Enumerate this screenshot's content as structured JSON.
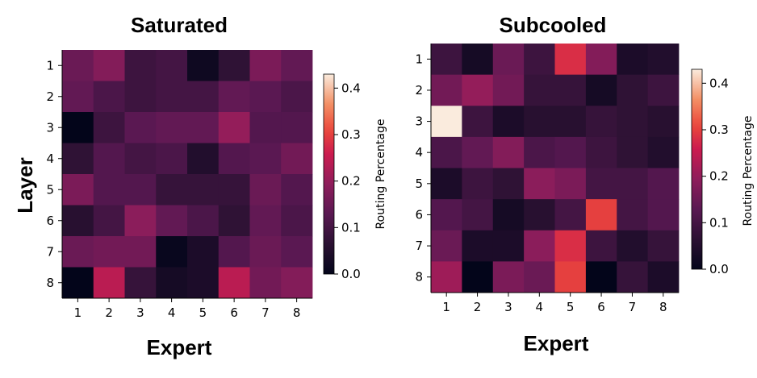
{
  "chart_data": [
    {
      "type": "heatmap",
      "title": "Saturated",
      "xlabel": "Expert",
      "ylabel": "Layer",
      "x_ticks": [
        "1",
        "2",
        "3",
        "4",
        "5",
        "6",
        "7",
        "8"
      ],
      "y_ticks": [
        "1",
        "2",
        "3",
        "4",
        "5",
        "6",
        "7",
        "8"
      ],
      "values": [
        [
          0.15,
          0.18,
          0.09,
          0.1,
          0.02,
          0.07,
          0.17,
          0.14
        ],
        [
          0.14,
          0.11,
          0.09,
          0.1,
          0.1,
          0.14,
          0.13,
          0.11
        ],
        [
          0.0,
          0.09,
          0.13,
          0.14,
          0.14,
          0.2,
          0.12,
          0.12
        ],
        [
          0.07,
          0.12,
          0.1,
          0.11,
          0.05,
          0.12,
          0.13,
          0.16
        ],
        [
          0.17,
          0.12,
          0.12,
          0.08,
          0.08,
          0.08,
          0.15,
          0.12
        ],
        [
          0.06,
          0.1,
          0.19,
          0.14,
          0.11,
          0.07,
          0.14,
          0.11
        ],
        [
          0.15,
          0.16,
          0.16,
          0.01,
          0.04,
          0.12,
          0.15,
          0.13
        ],
        [
          0.0,
          0.24,
          0.08,
          0.03,
          0.04,
          0.24,
          0.16,
          0.18
        ]
      ],
      "colorbar": {
        "label": "Routing Percentage",
        "ticks": [
          "0.0",
          "0.1",
          "0.2",
          "0.3",
          "0.4"
        ],
        "range": [
          0,
          0.43
        ]
      }
    },
    {
      "type": "heatmap",
      "title": "Subcooled",
      "xlabel": "Expert",
      "ylabel": "",
      "x_ticks": [
        "1",
        "2",
        "3",
        "4",
        "5",
        "6",
        "7",
        "8"
      ],
      "y_ticks": [
        "1",
        "2",
        "3",
        "4",
        "5",
        "6",
        "7",
        "8"
      ],
      "values": [
        [
          0.09,
          0.03,
          0.15,
          0.09,
          0.28,
          0.18,
          0.04,
          0.05
        ],
        [
          0.16,
          0.2,
          0.16,
          0.08,
          0.08,
          0.03,
          0.07,
          0.09
        ],
        [
          0.43,
          0.09,
          0.04,
          0.06,
          0.06,
          0.08,
          0.07,
          0.06
        ],
        [
          0.11,
          0.14,
          0.18,
          0.11,
          0.12,
          0.09,
          0.07,
          0.05
        ],
        [
          0.04,
          0.09,
          0.07,
          0.19,
          0.17,
          0.1,
          0.1,
          0.12
        ],
        [
          0.12,
          0.1,
          0.03,
          0.06,
          0.1,
          0.3,
          0.1,
          0.12
        ],
        [
          0.15,
          0.04,
          0.04,
          0.19,
          0.28,
          0.09,
          0.05,
          0.08
        ],
        [
          0.21,
          0.0,
          0.17,
          0.15,
          0.3,
          0.0,
          0.08,
          0.04
        ]
      ],
      "colorbar": {
        "label": "Routing Percentage",
        "ticks": [
          "0.0",
          "0.1",
          "0.2",
          "0.3",
          "0.4"
        ],
        "range": [
          0,
          0.43
        ]
      }
    }
  ]
}
